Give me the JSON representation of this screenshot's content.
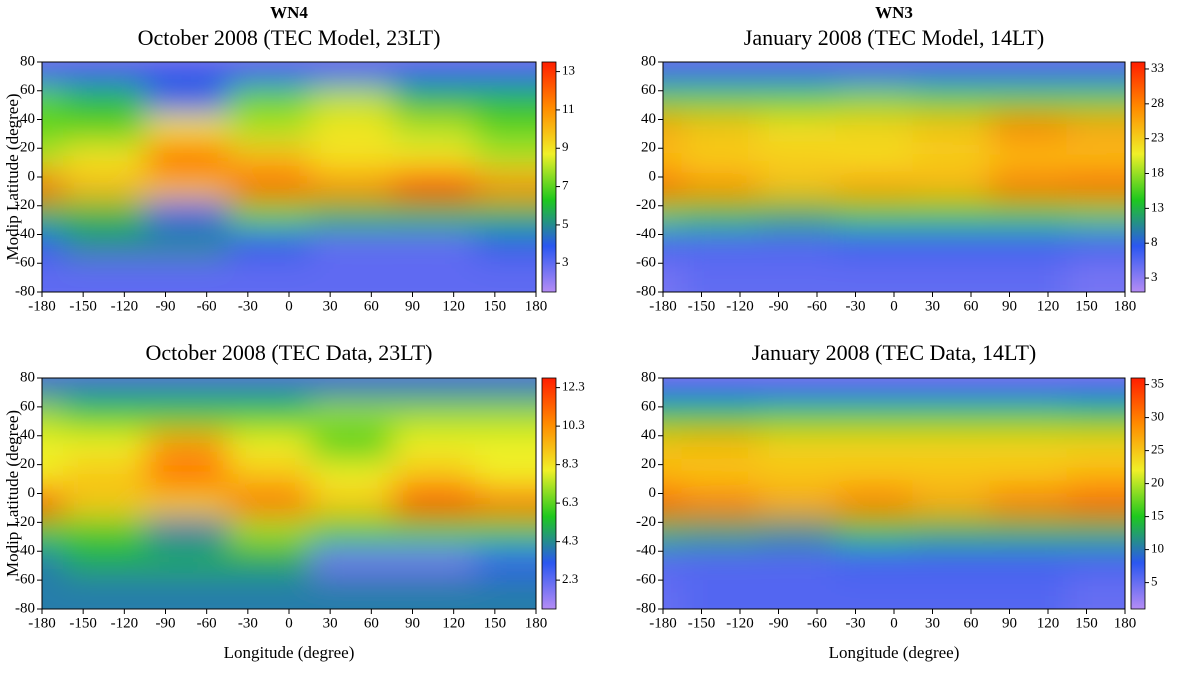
{
  "chart_data": [
    {
      "type": "heatmap",
      "supertitle": "WN4",
      "title": "October 2008 (TEC Model, 23LT)",
      "ylabel": "Modip Latitude (degree)",
      "x": [
        -180,
        -120,
        -60,
        0,
        60,
        120,
        180
      ],
      "y": [
        80,
        60,
        40,
        20,
        0,
        -20,
        -40,
        -60,
        -80
      ],
      "z": [
        [
          2,
          2,
          2,
          2,
          2,
          2,
          2
        ],
        [
          4,
          4,
          4,
          4,
          4,
          4,
          4
        ],
        [
          7,
          6,
          4,
          7,
          8,
          6,
          6
        ],
        [
          7,
          7,
          9,
          8,
          9,
          8,
          7
        ],
        [
          8,
          9,
          12,
          10,
          9,
          9,
          8
        ],
        [
          12,
          10,
          10,
          12,
          11,
          13,
          11
        ],
        [
          6,
          6,
          4,
          7,
          6,
          6,
          6
        ],
        [
          4,
          5,
          5,
          4,
          3,
          3,
          4
        ],
        [
          3,
          3,
          3,
          3,
          3,
          3,
          3
        ]
      ],
      "xlim": [
        -180,
        180
      ],
      "ylim": [
        -80,
        80
      ],
      "xticks": [
        -180,
        -150,
        -120,
        -90,
        -60,
        -30,
        0,
        30,
        60,
        90,
        120,
        150,
        180
      ],
      "yticks": [
        -80,
        -60,
        -40,
        -20,
        0,
        20,
        40,
        60,
        80
      ],
      "clim": [
        1.5,
        13.5
      ],
      "cticks": [
        3,
        5,
        7,
        9,
        11,
        13
      ],
      "colormap": [
        "#b58cf5",
        "#2b57f0",
        "#1ec81e",
        "#f0f028",
        "#ff8c00",
        "#ff1e00"
      ]
    },
    {
      "type": "heatmap",
      "supertitle": "WN3",
      "title": "January 2008 (TEC Model, 14LT)",
      "x": [
        -180,
        -120,
        -60,
        0,
        60,
        120,
        180
      ],
      "y": [
        80,
        60,
        40,
        20,
        0,
        -20,
        -40,
        -60,
        -80
      ],
      "z": [
        [
          3,
          3,
          3,
          3,
          3,
          3,
          3
        ],
        [
          8,
          8,
          8,
          8,
          8,
          8,
          8
        ],
        [
          16,
          16,
          16,
          17,
          16,
          16,
          16
        ],
        [
          26,
          24,
          22,
          23,
          24,
          28,
          26
        ],
        [
          24,
          23,
          23,
          22,
          23,
          24,
          24
        ],
        [
          30,
          27,
          24,
          26,
          25,
          29,
          30
        ],
        [
          16,
          14,
          13,
          15,
          15,
          15,
          16
        ],
        [
          7,
          6,
          6,
          7,
          7,
          7,
          7
        ],
        [
          4,
          5,
          5,
          5,
          5,
          5,
          4
        ]
      ],
      "xlim": [
        -180,
        180
      ],
      "ylim": [
        -80,
        80
      ],
      "xticks": [
        -180,
        -150,
        -120,
        -90,
        -60,
        -30,
        0,
        30,
        60,
        90,
        120,
        150,
        180
      ],
      "yticks": [
        -80,
        -60,
        -40,
        -20,
        0,
        20,
        40,
        60,
        80
      ],
      "clim": [
        1,
        34
      ],
      "cticks": [
        3,
        8,
        13,
        18,
        23,
        28,
        33
      ],
      "colormap": [
        "#b58cf5",
        "#2b57f0",
        "#1ec81e",
        "#f0f028",
        "#ff8c00",
        "#ff1e00"
      ]
    },
    {
      "type": "heatmap",
      "title": "October 2008 (TEC Data, 23LT)",
      "xlabel": "Longitude (degree)",
      "ylabel": "Modip Latitude (degree)",
      "x": [
        -180,
        -120,
        -60,
        0,
        60,
        120,
        180
      ],
      "y": [
        80,
        60,
        40,
        20,
        0,
        -20,
        -40,
        -60,
        -80
      ],
      "z": [
        [
          2,
          2,
          2,
          2,
          2,
          2,
          2
        ],
        [
          4,
          4,
          4,
          4,
          4,
          4,
          4
        ],
        [
          7,
          6,
          6,
          6,
          7,
          7,
          7
        ],
        [
          8,
          8,
          10,
          8,
          6,
          8,
          8
        ],
        [
          8,
          9,
          11,
          9,
          8,
          9,
          8
        ],
        [
          12,
          9,
          9,
          11,
          9,
          12,
          11
        ],
        [
          6,
          6,
          4,
          7,
          6,
          6,
          6
        ],
        [
          4,
          5,
          5,
          5,
          2,
          2,
          3
        ],
        [
          4,
          4,
          4,
          4,
          4,
          4,
          4
        ]
      ],
      "xlim": [
        -180,
        180
      ],
      "ylim": [
        -80,
        80
      ],
      "xticks": [
        -180,
        -150,
        -120,
        -90,
        -60,
        -30,
        0,
        30,
        60,
        90,
        120,
        150,
        180
      ],
      "yticks": [
        -80,
        -60,
        -40,
        -20,
        0,
        20,
        40,
        60,
        80
      ],
      "clim": [
        0.8,
        12.8
      ],
      "cticks": [
        2.3,
        4.3,
        6.3,
        8.3,
        10.3,
        12.3
      ],
      "colormap": [
        "#b58cf5",
        "#2b57f0",
        "#1ec81e",
        "#f0f028",
        "#ff8c00",
        "#ff1e00"
      ]
    },
    {
      "type": "heatmap",
      "title": "January 2008 (TEC Data, 14LT)",
      "xlabel": "Longitude (degree)",
      "x": [
        -180,
        -120,
        -60,
        0,
        60,
        120,
        180
      ],
      "y": [
        80,
        60,
        40,
        20,
        0,
        -20,
        -40,
        -60,
        -80
      ],
      "z": [
        [
          2,
          2,
          2,
          2,
          2,
          2,
          2
        ],
        [
          8,
          8,
          8,
          8,
          8,
          8,
          8
        ],
        [
          15,
          15,
          16,
          16,
          16,
          16,
          15
        ],
        [
          25,
          26,
          24,
          24,
          24,
          24,
          24
        ],
        [
          26,
          25,
          25,
          25,
          25,
          25,
          26
        ],
        [
          32,
          30,
          27,
          30,
          27,
          30,
          32
        ],
        [
          14,
          13,
          12,
          15,
          14,
          14,
          14
        ],
        [
          6,
          6,
          6,
          7,
          7,
          7,
          7
        ],
        [
          5,
          6,
          6,
          6,
          6,
          6,
          5
        ]
      ],
      "xlim": [
        -180,
        180
      ],
      "ylim": [
        -80,
        80
      ],
      "xticks": [
        -180,
        -150,
        -120,
        -90,
        -60,
        -30,
        0,
        30,
        60,
        90,
        120,
        150,
        180
      ],
      "yticks": [
        -80,
        -60,
        -40,
        -20,
        0,
        20,
        40,
        60,
        80
      ],
      "clim": [
        1,
        36
      ],
      "cticks": [
        5,
        10,
        15,
        20,
        25,
        30,
        35
      ],
      "colormap": [
        "#b58cf5",
        "#2b57f0",
        "#1ec81e",
        "#f0f028",
        "#ff8c00",
        "#ff1e00"
      ]
    }
  ]
}
